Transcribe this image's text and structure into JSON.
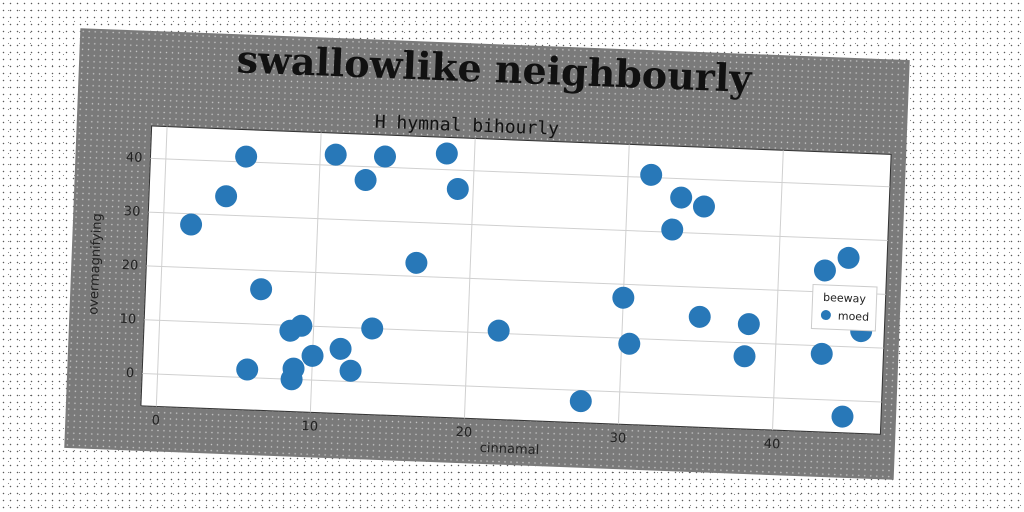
{
  "figure_title": "swallowlike neighbourly",
  "chart_data": {
    "type": "scatter",
    "title": "H hymnal bihourly",
    "xlabel": "cinnamal",
    "ylabel": "overmagnifying",
    "xlim": [
      -1,
      47
    ],
    "ylim": [
      -6,
      46
    ],
    "xticks": [
      0,
      10,
      20,
      30,
      40
    ],
    "yticks": [
      0,
      10,
      20,
      30,
      40
    ],
    "grid": true,
    "legend": {
      "title": "beeway",
      "placement": "center-right"
    },
    "series": [
      {
        "name": "moed",
        "color": "#2878b8",
        "points": [
          {
            "x": 1.8,
            "y": 28
          },
          {
            "x": 4.0,
            "y": 33.5
          },
          {
            "x": 5.2,
            "y": 41
          },
          {
            "x": 6.5,
            "y": 16.5
          },
          {
            "x": 5.8,
            "y": 1.5
          },
          {
            "x": 8.5,
            "y": 9
          },
          {
            "x": 9.2,
            "y": 10
          },
          {
            "x": 8.8,
            "y": 2
          },
          {
            "x": 8.7,
            "y": 0
          },
          {
            "x": 10.0,
            "y": 4.5
          },
          {
            "x": 11.0,
            "y": 42
          },
          {
            "x": 11.8,
            "y": 6
          },
          {
            "x": 12.5,
            "y": 2
          },
          {
            "x": 13.0,
            "y": 37.5
          },
          {
            "x": 13.8,
            "y": 10
          },
          {
            "x": 14.2,
            "y": 42
          },
          {
            "x": 16.5,
            "y": 22.5
          },
          {
            "x": 18.2,
            "y": 43
          },
          {
            "x": 19.0,
            "y": 36.5
          },
          {
            "x": 22.0,
            "y": 10.5
          },
          {
            "x": 27.5,
            "y": -2
          },
          {
            "x": 30.0,
            "y": 17.5
          },
          {
            "x": 30.5,
            "y": 9
          },
          {
            "x": 31.5,
            "y": 40.5
          },
          {
            "x": 33.0,
            "y": 30.5
          },
          {
            "x": 33.5,
            "y": 36.5
          },
          {
            "x": 35.0,
            "y": 35
          },
          {
            "x": 35.0,
            "y": 14.5
          },
          {
            "x": 38.2,
            "y": 13.5
          },
          {
            "x": 38.0,
            "y": 7.5
          },
          {
            "x": 43.0,
            "y": 24
          },
          {
            "x": 43.0,
            "y": 8.5
          },
          {
            "x": 44.5,
            "y": 26.5
          },
          {
            "x": 45.5,
            "y": 13
          },
          {
            "x": 44.5,
            "y": -3
          }
        ]
      }
    ]
  }
}
